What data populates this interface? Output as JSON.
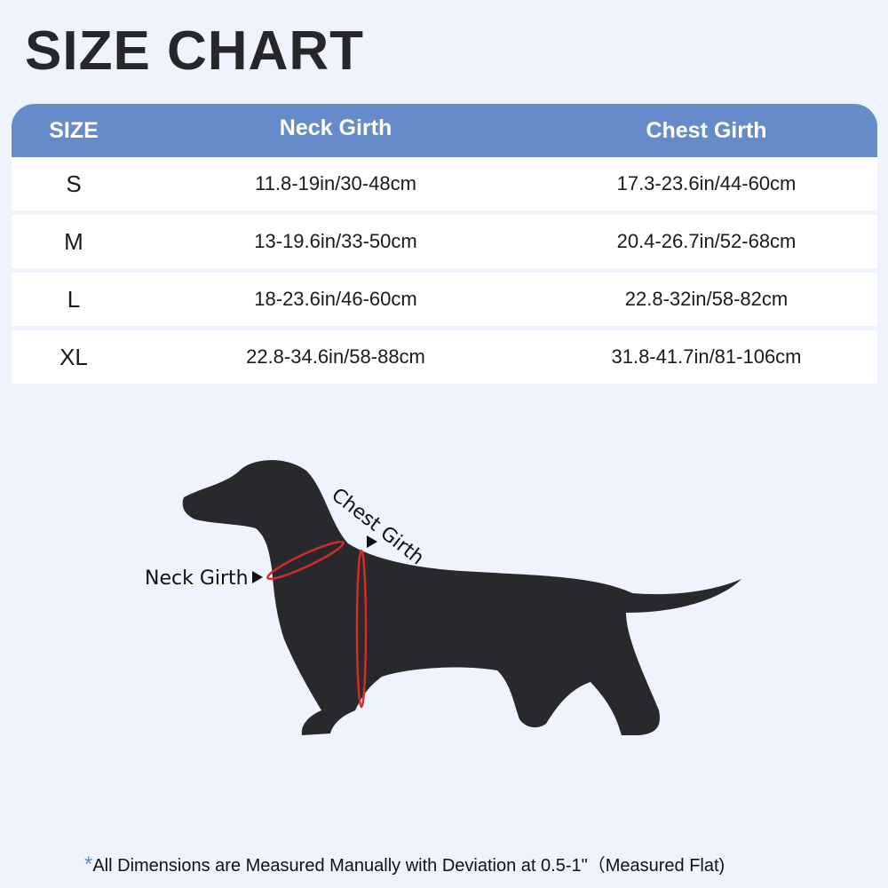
{
  "title": "SIZE CHART",
  "table": {
    "headers": [
      "SIZE",
      "Neck Girth",
      "Chest Girth"
    ],
    "rows": [
      [
        "S",
        "11.8-19in/30-48cm",
        "17.3-23.6in/44-60cm"
      ],
      [
        "M",
        "13-19.6in/33-50cm",
        "20.4-26.7in/52-68cm"
      ],
      [
        "L",
        "18-23.6in/46-60cm",
        "22.8-32in/58-82cm"
      ],
      [
        "XL",
        "22.8-34.6in/58-88cm",
        "31.8-41.7in/81-106cm"
      ]
    ]
  },
  "diagram": {
    "neck_label": "Neck Girth",
    "chest_label": "Chest Girth"
  },
  "note": {
    "star": "*",
    "text": "All Dimensions are Measured Manually with Deviation at 0.5-1\"（Measured Flat)"
  },
  "colors": {
    "header": "#668bc9",
    "background": "#eef3fe",
    "measure_line": "#d62a2a"
  }
}
